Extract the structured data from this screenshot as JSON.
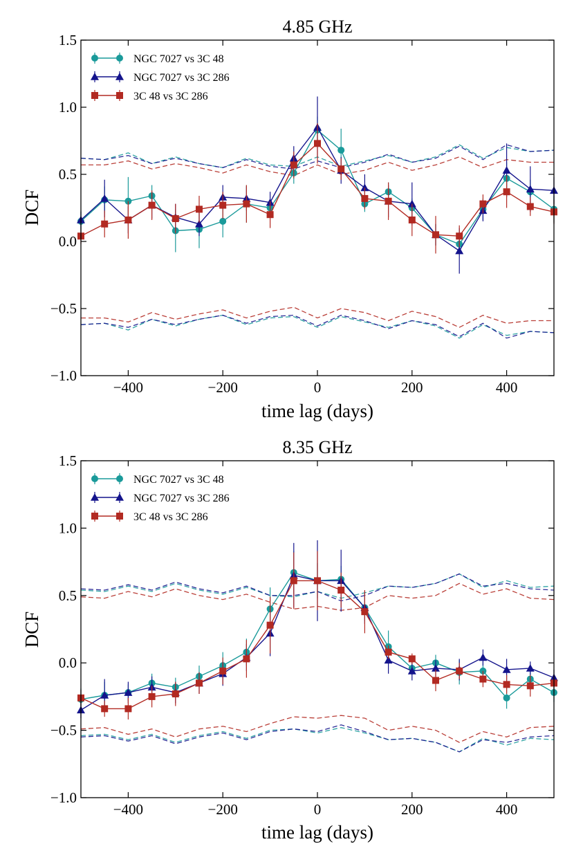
{
  "chart_data": [
    {
      "type": "line",
      "title": "4.85 GHz",
      "xlabel": "time lag (days)",
      "ylabel": "DCF",
      "xlim": [
        -500,
        500
      ],
      "ylim": [
        -1.0,
        1.5
      ],
      "xticks": [
        -400,
        -200,
        0,
        200,
        400
      ],
      "xtick_labels": [
        "−400",
        "−200",
        "0",
        "200",
        "400"
      ],
      "yticks": [
        -1.0,
        -0.5,
        0.0,
        0.5,
        1.0,
        1.5
      ],
      "ytick_labels": [
        "−1.0",
        "−0.5",
        "0.0",
        "0.5",
        "1.0",
        "1.5"
      ],
      "legend_position": "top-left",
      "x": [
        -500,
        -450,
        -400,
        -350,
        -300,
        -250,
        -200,
        -150,
        -100,
        -50,
        0,
        50,
        100,
        150,
        200,
        250,
        300,
        350,
        400,
        450,
        500
      ],
      "series": [
        {
          "name": "NGC 7027 vs 3C 48",
          "color": "#1a9a9a",
          "marker": "circle",
          "values": [
            0.15,
            0.31,
            0.3,
            0.34,
            0.08,
            0.09,
            0.15,
            0.28,
            0.25,
            0.51,
            0.83,
            0.68,
            0.28,
            0.37,
            0.25,
            0.05,
            -0.02,
            0.24,
            0.47,
            0.37,
            0.24
          ],
          "errors": [
            0.08,
            0.1,
            0.18,
            0.08,
            0.16,
            0.14,
            0.12,
            0.14,
            0.06,
            0.08,
            0.1,
            0.16,
            0.06,
            0.07,
            0.07,
            0.08,
            0.06,
            0.08,
            0.12,
            0.09,
            0.1
          ],
          "upper_bound": [
            0.62,
            0.61,
            0.66,
            0.58,
            0.63,
            0.58,
            0.55,
            0.62,
            0.57,
            0.56,
            0.63,
            0.56,
            0.6,
            0.64,
            0.59,
            0.63,
            0.72,
            0.62,
            0.7,
            0.67,
            0.68
          ],
          "lower_bound": [
            -0.62,
            -0.61,
            -0.66,
            -0.58,
            -0.63,
            -0.58,
            -0.55,
            -0.62,
            -0.57,
            -0.56,
            -0.64,
            -0.56,
            -0.6,
            -0.64,
            -0.59,
            -0.63,
            -0.72,
            -0.62,
            -0.7,
            -0.67,
            -0.68
          ]
        },
        {
          "name": "NGC 7027 vs 3C 286",
          "color": "#14148c",
          "marker": "triangle",
          "values": [
            0.16,
            0.32,
            0.16,
            0.27,
            0.18,
            0.13,
            0.33,
            0.32,
            0.29,
            0.62,
            0.85,
            0.53,
            0.4,
            0.3,
            0.28,
            0.05,
            -0.07,
            0.23,
            0.53,
            0.39,
            0.38
          ],
          "errors": [
            0.06,
            0.14,
            0.1,
            0.1,
            0.1,
            0.09,
            0.09,
            0.09,
            0.08,
            0.09,
            0.23,
            0.1,
            0.1,
            0.12,
            0.16,
            0.08,
            0.17,
            0.08,
            0.2,
            0.17,
            0.1
          ],
          "upper_bound": [
            0.62,
            0.61,
            0.64,
            0.58,
            0.62,
            0.58,
            0.55,
            0.61,
            0.56,
            0.54,
            0.6,
            0.55,
            0.59,
            0.65,
            0.59,
            0.62,
            0.71,
            0.61,
            0.72,
            0.67,
            0.68
          ],
          "lower_bound": [
            -0.62,
            -0.61,
            -0.64,
            -0.58,
            -0.62,
            -0.58,
            -0.55,
            -0.61,
            -0.56,
            -0.55,
            -0.63,
            -0.55,
            -0.59,
            -0.65,
            -0.59,
            -0.62,
            -0.71,
            -0.61,
            -0.72,
            -0.67,
            -0.68
          ]
        },
        {
          "name": "3C 48 vs 3C 286",
          "color": "#b22a22",
          "marker": "square",
          "values": [
            0.04,
            0.13,
            0.16,
            0.27,
            0.17,
            0.24,
            0.27,
            0.28,
            0.2,
            0.57,
            0.73,
            0.54,
            0.32,
            0.3,
            0.16,
            0.05,
            0.04,
            0.28,
            0.37,
            0.26,
            0.22
          ],
          "errors": [
            0.06,
            0.1,
            0.14,
            0.11,
            0.11,
            0.1,
            0.1,
            0.14,
            0.1,
            0.1,
            0.15,
            0.08,
            0.08,
            0.14,
            0.12,
            0.14,
            0.08,
            0.07,
            0.12,
            0.07,
            0.09
          ],
          "upper_bound": [
            0.57,
            0.57,
            0.6,
            0.54,
            0.58,
            0.55,
            0.51,
            0.57,
            0.52,
            0.49,
            0.57,
            0.5,
            0.53,
            0.59,
            0.53,
            0.57,
            0.63,
            0.55,
            0.61,
            0.59,
            0.59
          ],
          "lower_bound": [
            -0.57,
            -0.57,
            -0.6,
            -0.53,
            -0.58,
            -0.54,
            -0.51,
            -0.57,
            -0.52,
            -0.49,
            -0.57,
            -0.5,
            -0.53,
            -0.59,
            -0.52,
            -0.56,
            -0.64,
            -0.55,
            -0.61,
            -0.59,
            -0.59
          ]
        }
      ]
    },
    {
      "type": "line",
      "title": "8.35 GHz",
      "xlabel": "time lag (days)",
      "ylabel": "DCF",
      "xlim": [
        -500,
        500
      ],
      "ylim": [
        -1.0,
        1.5
      ],
      "xticks": [
        -400,
        -200,
        0,
        200,
        400
      ],
      "xtick_labels": [
        "−400",
        "−200",
        "0",
        "200",
        "400"
      ],
      "yticks": [
        -1.0,
        -0.5,
        0.0,
        0.5,
        1.0,
        1.5
      ],
      "ytick_labels": [
        "−1.0",
        "−0.5",
        "0.0",
        "0.5",
        "1.0",
        "1.5"
      ],
      "legend_position": "top-left",
      "x": [
        -500,
        -450,
        -400,
        -350,
        -300,
        -250,
        -200,
        -150,
        -100,
        -50,
        0,
        50,
        100,
        150,
        200,
        250,
        300,
        350,
        400,
        450,
        500
      ],
      "series": [
        {
          "name": "NGC 7027 vs 3C 48",
          "color": "#1a9a9a",
          "marker": "circle",
          "values": [
            -0.27,
            -0.24,
            -0.22,
            -0.15,
            -0.18,
            -0.1,
            -0.02,
            0.08,
            0.4,
            0.67,
            0.61,
            0.62,
            0.41,
            0.12,
            -0.04,
            0.0,
            -0.07,
            -0.06,
            -0.26,
            -0.12,
            -0.22
          ],
          "errors": [
            0.08,
            0.1,
            0.06,
            0.07,
            0.07,
            0.08,
            0.1,
            0.1,
            0.16,
            0.16,
            0.13,
            0.1,
            0.1,
            0.12,
            0.05,
            0.06,
            0.09,
            0.07,
            0.08,
            0.08,
            0.07
          ],
          "upper_bound": [
            0.54,
            0.53,
            0.57,
            0.53,
            0.59,
            0.54,
            0.51,
            0.56,
            0.5,
            0.49,
            0.53,
            0.48,
            0.52,
            0.57,
            0.56,
            0.59,
            0.66,
            0.56,
            0.61,
            0.56,
            0.57
          ],
          "lower_bound": [
            -0.54,
            -0.53,
            -0.57,
            -0.53,
            -0.59,
            -0.54,
            -0.51,
            -0.56,
            -0.5,
            -0.49,
            -0.52,
            -0.48,
            -0.52,
            -0.57,
            -0.56,
            -0.59,
            -0.66,
            -0.56,
            -0.61,
            -0.56,
            -0.57
          ]
        },
        {
          "name": "NGC 7027 vs 3C 286",
          "color": "#14148c",
          "marker": "triangle",
          "values": [
            -0.35,
            -0.24,
            -0.22,
            -0.18,
            -0.22,
            -0.15,
            -0.08,
            0.04,
            0.22,
            0.65,
            0.61,
            0.61,
            0.41,
            0.02,
            -0.06,
            -0.04,
            -0.05,
            0.04,
            -0.05,
            -0.04,
            -0.11
          ],
          "errors": [
            0.06,
            0.12,
            0.08,
            0.08,
            0.08,
            0.08,
            0.09,
            0.1,
            0.17,
            0.24,
            0.3,
            0.23,
            0.12,
            0.1,
            0.07,
            0.06,
            0.08,
            0.06,
            0.08,
            0.05,
            0.06
          ],
          "upper_bound": [
            0.55,
            0.54,
            0.58,
            0.54,
            0.6,
            0.55,
            0.52,
            0.57,
            0.5,
            0.5,
            0.53,
            0.46,
            0.5,
            0.57,
            0.56,
            0.59,
            0.66,
            0.57,
            0.59,
            0.55,
            0.54
          ],
          "lower_bound": [
            -0.55,
            -0.54,
            -0.58,
            -0.54,
            -0.6,
            -0.55,
            -0.52,
            -0.57,
            -0.51,
            -0.49,
            -0.51,
            -0.46,
            -0.51,
            -0.57,
            -0.56,
            -0.59,
            -0.66,
            -0.57,
            -0.59,
            -0.55,
            -0.54
          ]
        },
        {
          "name": "3C 48 vs 3C 286",
          "color": "#b22a22",
          "marker": "square",
          "values": [
            -0.26,
            -0.34,
            -0.34,
            -0.25,
            -0.23,
            -0.15,
            -0.06,
            0.03,
            0.28,
            0.61,
            0.61,
            0.54,
            0.38,
            0.08,
            0.03,
            -0.13,
            -0.06,
            -0.12,
            -0.16,
            -0.17,
            -0.15
          ],
          "errors": [
            0.06,
            0.06,
            0.08,
            0.08,
            0.09,
            0.08,
            0.1,
            0.14,
            0.21,
            0.21,
            0.22,
            0.13,
            0.16,
            0.05,
            0.04,
            0.08,
            0.06,
            0.06,
            0.07,
            0.08,
            0.06
          ],
          "upper_bound": [
            0.49,
            0.48,
            0.53,
            0.49,
            0.55,
            0.5,
            0.47,
            0.51,
            0.45,
            0.4,
            0.42,
            0.39,
            0.41,
            0.5,
            0.48,
            0.5,
            0.59,
            0.51,
            0.55,
            0.48,
            0.47
          ],
          "lower_bound": [
            -0.49,
            -0.48,
            -0.53,
            -0.49,
            -0.55,
            -0.49,
            -0.47,
            -0.51,
            -0.45,
            -0.4,
            -0.41,
            -0.39,
            -0.41,
            -0.5,
            -0.47,
            -0.5,
            -0.59,
            -0.51,
            -0.55,
            -0.48,
            -0.47
          ]
        }
      ]
    }
  ]
}
